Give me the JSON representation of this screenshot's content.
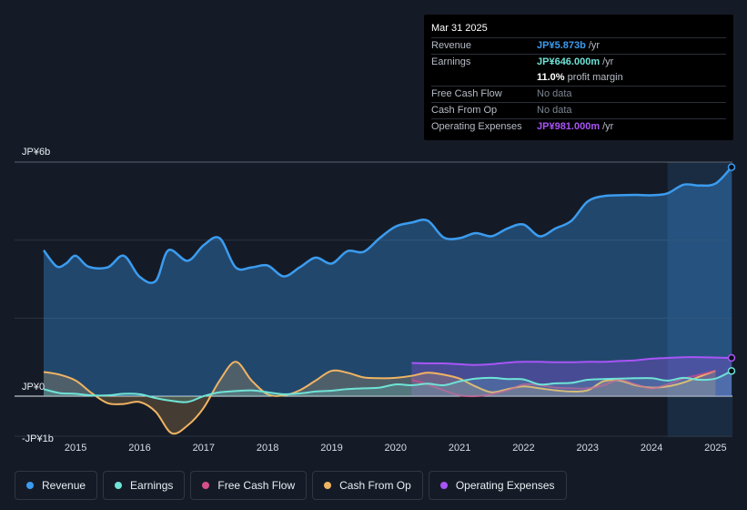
{
  "chart_data": {
    "type": "area",
    "y_axis": {
      "top_label": "JP¥6b",
      "zero_label": "JP¥0",
      "bottom_label": "-JP¥1b",
      "ylim": [
        -1.0,
        6.0
      ]
    },
    "x_axis": {
      "ticks": [
        "2015",
        "2016",
        "2017",
        "2018",
        "2019",
        "2020",
        "2021",
        "2022",
        "2023",
        "2024",
        "2025"
      ],
      "xlim": [
        2014.5,
        2025.25
      ]
    },
    "forecast_shade_start": 2024.25,
    "series": [
      {
        "name": "Revenue",
        "color": "#3b9cf0",
        "fill": true,
        "x": [
          2014.5,
          2014.7,
          2014.85,
          2015.0,
          2015.2,
          2015.5,
          2015.75,
          2016.0,
          2016.25,
          2016.45,
          2016.75,
          2017.0,
          2017.25,
          2017.5,
          2017.75,
          2018.0,
          2018.25,
          2018.5,
          2018.75,
          2019.0,
          2019.25,
          2019.5,
          2019.75,
          2020.0,
          2020.25,
          2020.5,
          2020.75,
          2021.0,
          2021.25,
          2021.5,
          2021.75,
          2022.0,
          2022.25,
          2022.5,
          2022.75,
          2023.0,
          2023.25,
          2023.5,
          2023.75,
          2024.0,
          2024.25,
          2024.5,
          2024.75,
          2025.0,
          2025.25
        ],
        "values": [
          3.74,
          3.33,
          3.4,
          3.6,
          3.32,
          3.3,
          3.6,
          3.06,
          2.95,
          3.74,
          3.47,
          3.87,
          4.05,
          3.3,
          3.3,
          3.35,
          3.07,
          3.3,
          3.55,
          3.4,
          3.72,
          3.7,
          4.05,
          4.35,
          4.45,
          4.5,
          4.07,
          4.05,
          4.18,
          4.1,
          4.3,
          4.4,
          4.1,
          4.3,
          4.5,
          4.99,
          5.13,
          5.15,
          5.16,
          5.15,
          5.2,
          5.42,
          5.4,
          5.45,
          5.87
        ]
      },
      {
        "name": "Earnings",
        "color": "#6fe3d6",
        "fill": true,
        "x": [
          2014.5,
          2014.75,
          2015.0,
          2015.25,
          2015.5,
          2015.75,
          2016.0,
          2016.25,
          2016.5,
          2016.75,
          2017.0,
          2017.25,
          2017.5,
          2017.75,
          2018.0,
          2018.25,
          2018.5,
          2018.75,
          2019.0,
          2019.25,
          2019.5,
          2019.75,
          2020.0,
          2020.25,
          2020.5,
          2020.75,
          2021.0,
          2021.25,
          2021.5,
          2021.75,
          2022.0,
          2022.25,
          2022.5,
          2022.75,
          2023.0,
          2023.25,
          2023.5,
          2023.75,
          2024.0,
          2024.25,
          2024.5,
          2024.75,
          2025.0,
          2025.25
        ],
        "values": [
          0.18,
          0.08,
          0.06,
          0.02,
          0.02,
          0.06,
          0.05,
          -0.05,
          -0.12,
          -0.15,
          0.0,
          0.1,
          0.13,
          0.15,
          0.1,
          0.05,
          0.07,
          0.12,
          0.14,
          0.18,
          0.2,
          0.22,
          0.3,
          0.28,
          0.32,
          0.28,
          0.38,
          0.45,
          0.47,
          0.44,
          0.43,
          0.3,
          0.33,
          0.34,
          0.42,
          0.44,
          0.45,
          0.46,
          0.46,
          0.4,
          0.47,
          0.42,
          0.45,
          0.646
        ]
      },
      {
        "name": "Free Cash Flow",
        "color": "#d64f8c",
        "fill": false,
        "x": [
          2020.25,
          2020.5,
          2020.75,
          2021.0,
          2021.25,
          2021.5,
          2021.75,
          2022.0,
          2022.25,
          2022.5,
          2022.75,
          2023.0,
          2023.25,
          2023.5,
          2023.75,
          2024.0,
          2024.25,
          2024.5,
          2024.75,
          2025.0
        ],
        "values": [
          0.42,
          0.3,
          0.15,
          0.02,
          0.0,
          0.05,
          0.15,
          0.3,
          0.28,
          0.22,
          0.2,
          0.2,
          0.28,
          0.42,
          0.3,
          0.2,
          0.3,
          0.45,
          0.55,
          0.65
        ]
      },
      {
        "name": "Cash From Op",
        "color": "#f0b463",
        "fill": true,
        "x": [
          2014.5,
          2014.75,
          2015.0,
          2015.25,
          2015.5,
          2015.75,
          2016.0,
          2016.25,
          2016.5,
          2016.75,
          2017.0,
          2017.25,
          2017.5,
          2017.75,
          2018.0,
          2018.25,
          2018.5,
          2018.75,
          2019.0,
          2019.25,
          2019.5,
          2019.75,
          2020.0,
          2020.25,
          2020.5,
          2020.75,
          2021.0,
          2021.25,
          2021.5,
          2021.75,
          2022.0,
          2022.25,
          2022.5,
          2022.75,
          2023.0,
          2023.25,
          2023.5,
          2023.75,
          2024.0,
          2024.25,
          2024.5,
          2024.75,
          2025.0
        ],
        "values": [
          0.62,
          0.55,
          0.4,
          0.08,
          -0.18,
          -0.2,
          -0.15,
          -0.4,
          -0.95,
          -0.75,
          -0.3,
          0.4,
          0.88,
          0.4,
          0.05,
          0.02,
          0.15,
          0.4,
          0.65,
          0.6,
          0.48,
          0.46,
          0.47,
          0.52,
          0.6,
          0.55,
          0.45,
          0.25,
          0.1,
          0.18,
          0.25,
          0.2,
          0.15,
          0.12,
          0.15,
          0.38,
          0.4,
          0.28,
          0.22,
          0.25,
          0.35,
          0.5,
          0.65
        ]
      },
      {
        "name": "Operating Expenses",
        "color": "#a855f7",
        "fill": true,
        "x": [
          2020.25,
          2020.5,
          2020.75,
          2021.0,
          2021.25,
          2021.5,
          2021.75,
          2022.0,
          2022.25,
          2022.5,
          2022.75,
          2023.0,
          2023.25,
          2023.5,
          2023.75,
          2024.0,
          2024.25,
          2024.5,
          2024.75,
          2025.0,
          2025.25
        ],
        "values": [
          0.85,
          0.84,
          0.84,
          0.82,
          0.8,
          0.82,
          0.86,
          0.88,
          0.88,
          0.87,
          0.87,
          0.88,
          0.88,
          0.9,
          0.92,
          0.96,
          0.98,
          1.0,
          1.0,
          0.99,
          0.981
        ]
      }
    ]
  },
  "tooltip": {
    "date": "Mar 31 2025",
    "revenue_label": "Revenue",
    "revenue_value": "JP¥5.873b",
    "revenue_suffix": "/yr",
    "earnings_label": "Earnings",
    "earnings_value": "JP¥646.000m",
    "earnings_suffix": "/yr",
    "margin_value": "11.0%",
    "margin_suffix": "profit margin",
    "fcf_label": "Free Cash Flow",
    "fcf_value": "No data",
    "cfo_label": "Cash From Op",
    "cfo_value": "No data",
    "opex_label": "Operating Expenses",
    "opex_value": "JP¥981.000m",
    "opex_suffix": "/yr"
  },
  "legend": [
    {
      "label": "Revenue",
      "color": "#3b9cf0"
    },
    {
      "label": "Earnings",
      "color": "#6fe3d6"
    },
    {
      "label": "Free Cash Flow",
      "color": "#d64f8c"
    },
    {
      "label": "Cash From Op",
      "color": "#f0b463"
    },
    {
      "label": "Operating Expenses",
      "color": "#a855f7"
    }
  ]
}
